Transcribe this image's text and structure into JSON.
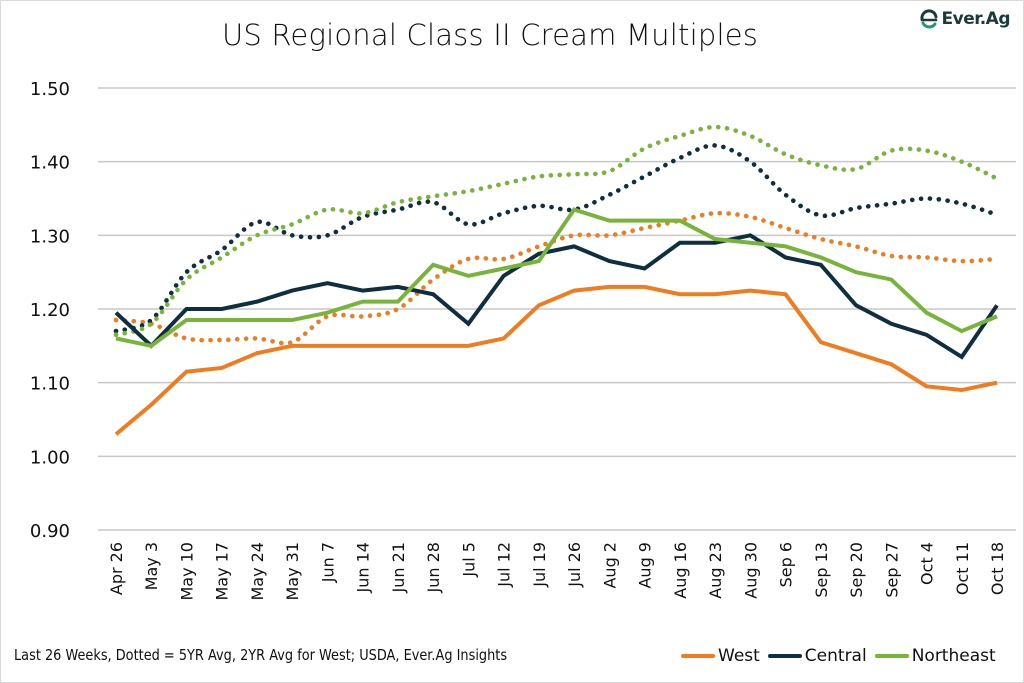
{
  "brand": {
    "logo_text": "Ever.Ag",
    "logo_icon": "everag-leaf-icon",
    "color": "#1a3b3a",
    "accent": "#1e9a6e"
  },
  "footer_note": "Last 26 Weeks, Dotted = 5YR Avg, 2YR Avg for West; USDA, Ever.Ag Insights",
  "chart_data": {
    "type": "line",
    "title": "US Regional Class II Cream Multiples",
    "xlabel": "",
    "ylabel": "",
    "ylim": [
      0.9,
      1.5
    ],
    "yticks": [
      0.9,
      1.0,
      1.1,
      1.2,
      1.3,
      1.4,
      1.5
    ],
    "ytick_labels": [
      "0.90",
      "1.00",
      "1.10",
      "1.20",
      "1.30",
      "1.40",
      "1.50"
    ],
    "grid": "horizontal",
    "legend_position": "bottom-right",
    "categories": [
      "Apr 26",
      "May 3",
      "May 10",
      "May 17",
      "May 24",
      "May 31",
      "Jun 7",
      "Jun 14",
      "Jun 21",
      "Jun 28",
      "Jul 5",
      "Jul 12",
      "Jul 19",
      "Jul 26",
      "Aug 2",
      "Aug 9",
      "Aug 16",
      "Aug 23",
      "Aug 30",
      "Sep 6",
      "Sep 13",
      "Sep 20",
      "Sep 27",
      "Oct 4",
      "Oct 11",
      "Oct 18"
    ],
    "series": [
      {
        "name": "West",
        "key": "west",
        "style": "solid",
        "color": "#ee7c21",
        "in_legend": true,
        "values": [
          1.03,
          1.07,
          1.115,
          1.12,
          1.14,
          1.15,
          1.15,
          1.15,
          1.15,
          1.15,
          1.15,
          1.16,
          1.205,
          1.225,
          1.23,
          1.23,
          1.22,
          1.22,
          1.225,
          1.22,
          1.155,
          1.14,
          1.125,
          1.095,
          1.09,
          1.1
        ]
      },
      {
        "name": "Central",
        "key": "central",
        "style": "solid",
        "color": "#0f2f40",
        "in_legend": true,
        "values": [
          1.195,
          1.15,
          1.2,
          1.2,
          1.21,
          1.225,
          1.235,
          1.225,
          1.23,
          1.22,
          1.18,
          1.245,
          1.275,
          1.285,
          1.265,
          1.255,
          1.29,
          1.29,
          1.3,
          1.27,
          1.26,
          1.205,
          1.18,
          1.165,
          1.135,
          1.205
        ]
      },
      {
        "name": "Northeast",
        "key": "northeast",
        "style": "solid",
        "color": "#79b43a",
        "in_legend": true,
        "values": [
          1.16,
          1.15,
          1.185,
          1.185,
          1.185,
          1.185,
          1.195,
          1.21,
          1.21,
          1.26,
          1.245,
          1.255,
          1.265,
          1.335,
          1.32,
          1.32,
          1.32,
          1.295,
          1.29,
          1.285,
          1.27,
          1.25,
          1.24,
          1.195,
          1.17,
          1.19
        ]
      },
      {
        "name": "West 2YR Avg",
        "key": "west_avg",
        "style": "dotted",
        "color": "#ee7c21",
        "in_legend": false,
        "values": [
          1.185,
          1.18,
          1.16,
          1.158,
          1.16,
          1.155,
          1.19,
          1.19,
          1.2,
          1.24,
          1.268,
          1.268,
          1.285,
          1.3,
          1.3,
          1.31,
          1.32,
          1.33,
          1.325,
          1.31,
          1.295,
          1.285,
          1.272,
          1.27,
          1.265,
          1.268
        ]
      },
      {
        "name": "Central 5YR Avg",
        "key": "central_avg",
        "style": "dotted",
        "color": "#0f2f40",
        "in_legend": false,
        "values": [
          1.17,
          1.185,
          1.25,
          1.28,
          1.318,
          1.3,
          1.3,
          1.325,
          1.335,
          1.345,
          1.315,
          1.33,
          1.34,
          1.335,
          1.355,
          1.38,
          1.405,
          1.422,
          1.4,
          1.355,
          1.327,
          1.337,
          1.343,
          1.35,
          1.343,
          1.328
        ]
      },
      {
        "name": "Northeast 5YR Avg",
        "key": "northeast_avg",
        "style": "dotted",
        "color": "#79b43a",
        "in_legend": false,
        "values": [
          1.165,
          1.18,
          1.24,
          1.27,
          1.3,
          1.315,
          1.335,
          1.33,
          1.345,
          1.353,
          1.36,
          1.37,
          1.38,
          1.383,
          1.387,
          1.418,
          1.435,
          1.447,
          1.435,
          1.41,
          1.395,
          1.39,
          1.415,
          1.415,
          1.4,
          1.377
        ]
      }
    ]
  },
  "legend": {
    "items": [
      {
        "label": "West",
        "color": "#ee7c21"
      },
      {
        "label": "Central",
        "color": "#0f2f40"
      },
      {
        "label": "Northeast",
        "color": "#79b43a"
      }
    ]
  }
}
